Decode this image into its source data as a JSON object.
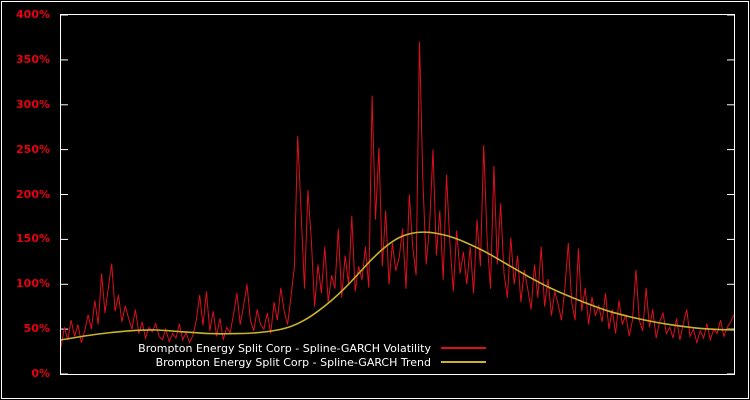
{
  "colors": {
    "background": "#000000",
    "frame": "#ffffff",
    "tick_label": "#e80012",
    "legend_text": "#ffffff"
  },
  "chart_data": {
    "type": "line",
    "title": "",
    "xlabel": "",
    "ylabel": "",
    "ylim": [
      0,
      400
    ],
    "grid": false,
    "legend_position": "inside-bottom-center",
    "x_axis_labels": [],
    "y_ticks": [
      {
        "label": "0%",
        "value": 0
      },
      {
        "label": "50%",
        "value": 50
      },
      {
        "label": "100%",
        "value": 100
      },
      {
        "label": "150%",
        "value": 150
      },
      {
        "label": "200%",
        "value": 200
      },
      {
        "label": "250%",
        "value": 250
      },
      {
        "label": "300%",
        "value": 300
      },
      {
        "label": "350%",
        "value": 350
      },
      {
        "label": "400%",
        "value": 400
      }
    ],
    "series": [
      {
        "name": "Brompton Energy Split Corp - Spline-GARCH Volatility",
        "color": "#dc0f1e",
        "unit": "%",
        "values": [
          30,
          52,
          38,
          60,
          42,
          55,
          35,
          48,
          66,
          50,
          82,
          55,
          112,
          68,
          96,
          123,
          70,
          88,
          58,
          76,
          62,
          50,
          72,
          45,
          58,
          40,
          52,
          47,
          56,
          42,
          38,
          50,
          36,
          45,
          40,
          56,
          38,
          46,
          35,
          43,
          60,
          88,
          54,
          92,
          48,
          70,
          42,
          62,
          38,
          52,
          46,
          66,
          90,
          55,
          76,
          100,
          60,
          48,
          72,
          55,
          50,
          68,
          45,
          80,
          60,
          96,
          70,
          55,
          86,
          120,
          265,
          180,
          95,
          205,
          150,
          75,
          122,
          90,
          142,
          80,
          110,
          95,
          162,
          85,
          132,
          100,
          176,
          92,
          120,
          105,
          142,
          96,
          310,
          172,
          252,
          120,
          182,
          100,
          146,
          115,
          130,
          162,
          95,
          200,
          142,
          110,
          370,
          215,
          122,
          166,
          250,
          132,
          182,
          105,
          222,
          146,
          92,
          160,
          112,
          136,
          100,
          142,
          90,
          172,
          120,
          255,
          150,
          95,
          232,
          122,
          190,
          112,
          85,
          152,
          100,
          132,
          80,
          116,
          95,
          72,
          122,
          85,
          142,
          75,
          106,
          65,
          92,
          78,
          60,
          96,
          146,
          80,
          60,
          140,
          70,
          96,
          55,
          86,
          65,
          76,
          58,
          90,
          50,
          72,
          45,
          82,
          55,
          66,
          42,
          60,
          116,
          60,
          48,
          96,
          52,
          72,
          40,
          58,
          68,
          45,
          52,
          40,
          62,
          38,
          56,
          72,
          42,
          50,
          35,
          48,
          40,
          56,
          38,
          50,
          45,
          60,
          42,
          52,
          58,
          66
        ]
      },
      {
        "name": "Brompton Energy Split Corp - Spline-GARCH Trend",
        "color": "#c8b42a",
        "unit": "%",
        "points": [
          [
            0,
            38
          ],
          [
            10,
            44
          ],
          [
            20,
            48
          ],
          [
            28,
            49
          ],
          [
            36,
            47
          ],
          [
            44,
            45
          ],
          [
            52,
            45
          ],
          [
            58,
            46
          ],
          [
            64,
            49
          ],
          [
            68,
            53
          ],
          [
            72,
            60
          ],
          [
            76,
            70
          ],
          [
            80,
            82
          ],
          [
            84,
            96
          ],
          [
            88,
            112
          ],
          [
            92,
            128
          ],
          [
            96,
            142
          ],
          [
            100,
            152
          ],
          [
            104,
            157
          ],
          [
            108,
            158
          ],
          [
            112,
            156
          ],
          [
            116,
            152
          ],
          [
            120,
            146
          ],
          [
            126,
            135
          ],
          [
            132,
            122
          ],
          [
            138,
            109
          ],
          [
            144,
            97
          ],
          [
            150,
            87
          ],
          [
            156,
            78
          ],
          [
            162,
            70
          ],
          [
            168,
            64
          ],
          [
            174,
            59
          ],
          [
            180,
            55
          ],
          [
            186,
            52
          ],
          [
            192,
            50
          ],
          [
            199,
            49
          ]
        ]
      }
    ]
  }
}
